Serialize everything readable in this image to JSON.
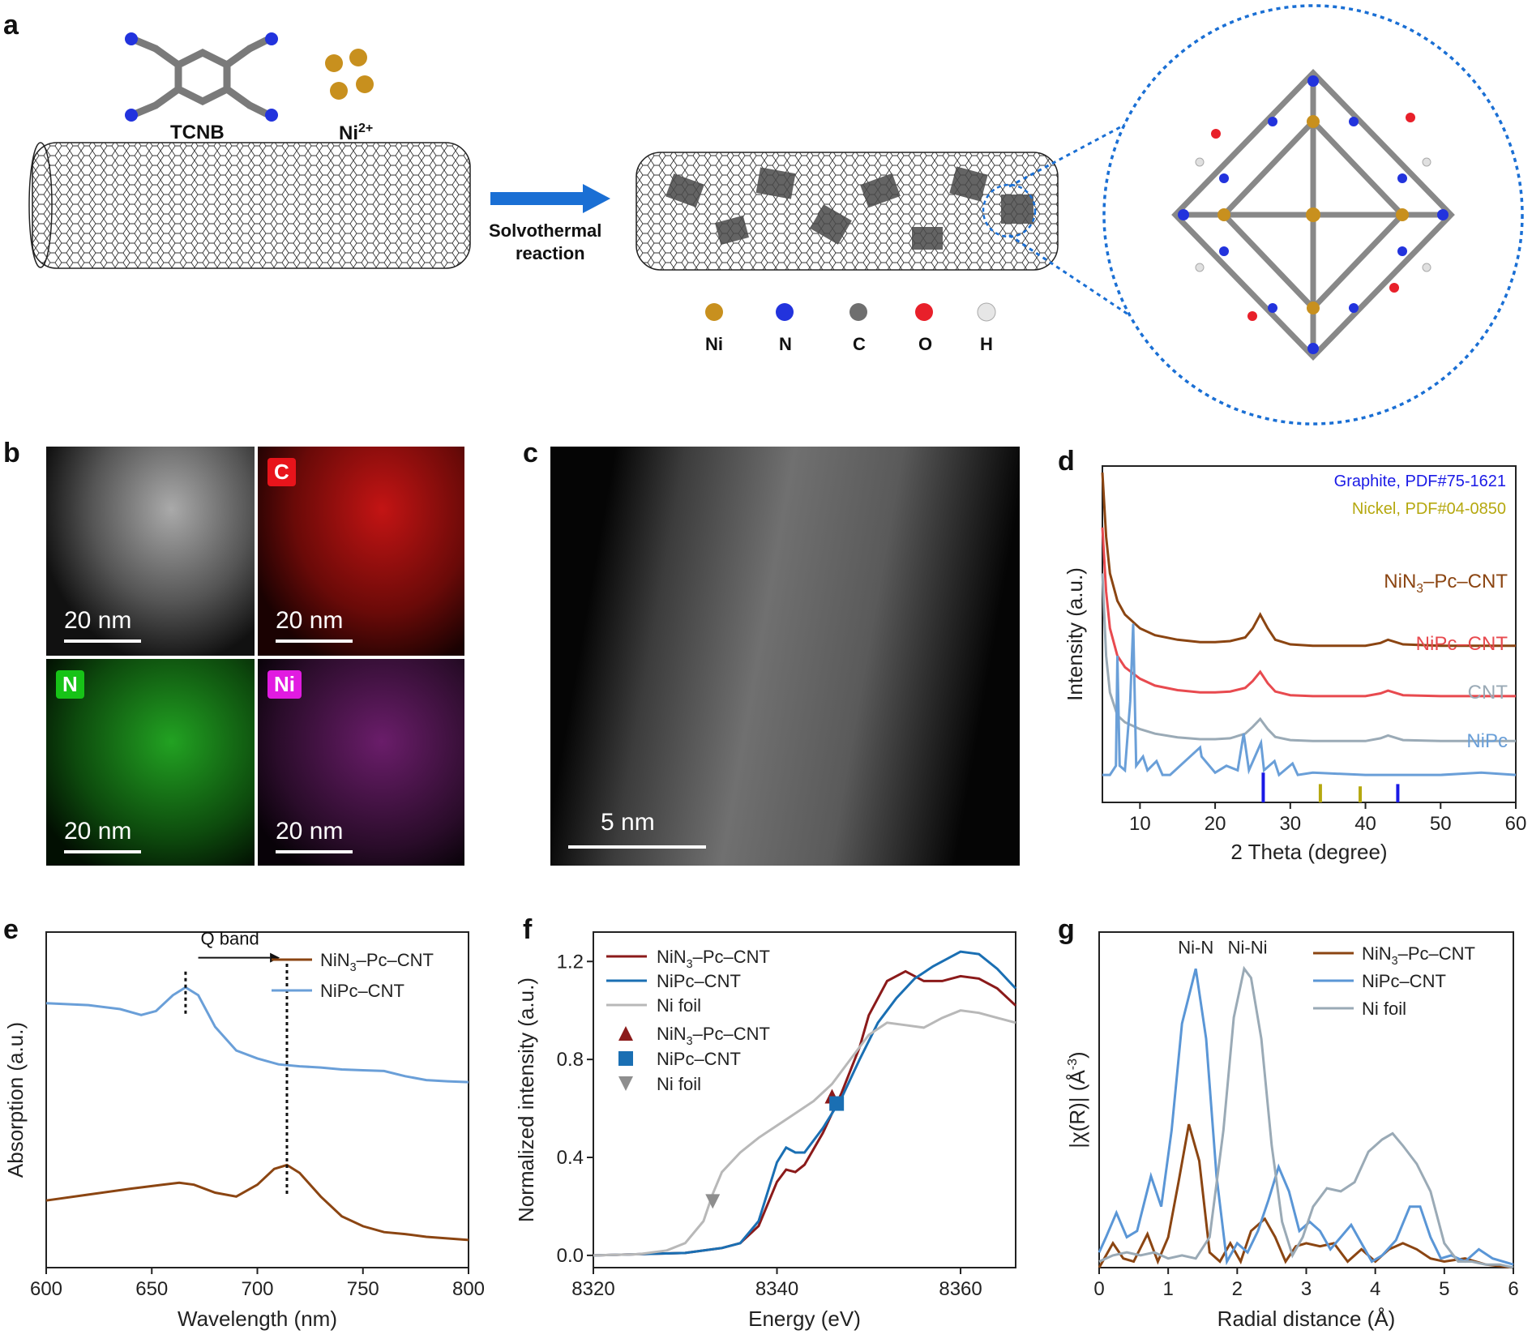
{
  "figure": {
    "panel_labels": [
      "a",
      "b",
      "c",
      "d",
      "e",
      "f",
      "g"
    ],
    "a": {
      "precursor_label": "TCNB",
      "metal_label": "Ni",
      "metal_charge": "2+",
      "arrow_text_line1": "Solvothermal",
      "arrow_text_line2": "reaction",
      "atom_legend": [
        {
          "label": "Ni",
          "color": "#c8901e"
        },
        {
          "label": "N",
          "color": "#2233dd"
        },
        {
          "label": "C",
          "color": "#6f6f6f"
        },
        {
          "label": "O",
          "color": "#e8202a"
        },
        {
          "label": "H",
          "color": "#e6e6e6"
        }
      ]
    },
    "b": {
      "tiles": [
        {
          "tag": "",
          "scale": "20 nm",
          "bg": "#2a2a2a",
          "tag_color": ""
        },
        {
          "tag": "C",
          "scale": "20 nm",
          "bg": "#5a0a08",
          "tag_color": "#e8141b"
        },
        {
          "tag": "N",
          "scale": "20 nm",
          "bg": "#0d3a0d",
          "tag_color": "#17c317"
        },
        {
          "tag": "Ni",
          "scale": "20 nm",
          "bg": "#160c16",
          "tag_color": "#e11be1"
        }
      ]
    },
    "c": {
      "scale": "5 nm"
    }
  },
  "chart_data": [
    {
      "id": "d",
      "type": "line",
      "xlabel": "2 Theta (degree)",
      "ylabel": "Intensity (a.u.)",
      "xlim": [
        5,
        60
      ],
      "xticks": [
        10,
        20,
        30,
        40,
        50,
        60
      ],
      "legend_refs": [
        {
          "text": "Graphite, PDF#75-1621",
          "color": "#1a1ae6"
        },
        {
          "text": "Nickel, PDF#04-0850",
          "color": "#b5a80f"
        }
      ],
      "series": [
        {
          "name": "NiN3–Pc–CNT",
          "name_main": "NiN",
          "name_sub": "3",
          "name_rest": "–Pc–CNT",
          "color": "#8b4512",
          "x": [
            5,
            5.5,
            6,
            7,
            8,
            10,
            12,
            15,
            18,
            20,
            22,
            24,
            25,
            26,
            27,
            28,
            30,
            33,
            36,
            40,
            42,
            43,
            45,
            50,
            55,
            60
          ],
          "y": [
            1.0,
            0.86,
            0.78,
            0.72,
            0.69,
            0.66,
            0.645,
            0.635,
            0.63,
            0.63,
            0.632,
            0.64,
            0.66,
            0.69,
            0.66,
            0.635,
            0.625,
            0.622,
            0.622,
            0.622,
            0.628,
            0.635,
            0.625,
            0.622,
            0.622,
            0.622
          ]
        },
        {
          "name": "NiPc–CNT",
          "color": "#e84a4f",
          "x": [
            5,
            5.5,
            6,
            7,
            8,
            10,
            12,
            15,
            18,
            20,
            22,
            24,
            25,
            26,
            27,
            28,
            30,
            33,
            36,
            40,
            42,
            43,
            45,
            50,
            55,
            60
          ],
          "y": [
            0.88,
            0.74,
            0.66,
            0.6,
            0.575,
            0.55,
            0.535,
            0.525,
            0.52,
            0.52,
            0.522,
            0.53,
            0.545,
            0.565,
            0.54,
            0.522,
            0.514,
            0.512,
            0.512,
            0.512,
            0.518,
            0.524,
            0.514,
            0.512,
            0.512,
            0.512
          ]
        },
        {
          "name": "CNT",
          "color": "#9aaab6",
          "x": [
            5,
            5.5,
            6,
            7,
            8,
            10,
            12,
            15,
            18,
            20,
            22,
            24,
            25,
            26,
            27,
            28,
            30,
            33,
            36,
            40,
            42,
            43,
            45,
            50,
            55,
            60
          ],
          "y": [
            0.78,
            0.6,
            0.52,
            0.47,
            0.455,
            0.44,
            0.43,
            0.422,
            0.418,
            0.418,
            0.42,
            0.43,
            0.445,
            0.462,
            0.44,
            0.423,
            0.416,
            0.414,
            0.414,
            0.414,
            0.42,
            0.426,
            0.416,
            0.414,
            0.414,
            0.414
          ]
        },
        {
          "name": "NiPc",
          "color": "#6a9fd8",
          "x": [
            5,
            6,
            6.8,
            7.0,
            7.3,
            8,
            8.7,
            9.1,
            9.5,
            10.4,
            11,
            12.2,
            13,
            14,
            18,
            18.2,
            20,
            21.5,
            23,
            23.8,
            24.5,
            26.1,
            26.5,
            27.9,
            28.5,
            30.3,
            31,
            33,
            40,
            50,
            55.4,
            60
          ],
          "y": [
            0.34,
            0.34,
            0.36,
            0.6,
            0.36,
            0.35,
            0.5,
            0.67,
            0.36,
            0.38,
            0.35,
            0.37,
            0.34,
            0.34,
            0.4,
            0.38,
            0.345,
            0.36,
            0.35,
            0.43,
            0.35,
            0.41,
            0.35,
            0.37,
            0.34,
            0.365,
            0.34,
            0.345,
            0.34,
            0.34,
            0.345,
            0.34
          ]
        }
      ],
      "ref_lines": [
        {
          "x": 26.4,
          "height": 0.065,
          "color": "#1a1ae6"
        },
        {
          "x": 44.3,
          "height": 0.04,
          "color": "#1a1ae6"
        },
        {
          "x": 34.0,
          "height": 0.04,
          "color": "#b5a80f"
        },
        {
          "x": 39.3,
          "height": 0.035,
          "color": "#b5a80f"
        }
      ]
    },
    {
      "id": "e",
      "type": "line",
      "xlabel": "Wavelength (nm)",
      "ylabel": "Absorption (a.u.)",
      "xlim": [
        600,
        800
      ],
      "xticks": [
        600,
        650,
        700,
        750,
        800
      ],
      "annotation": "Q band",
      "series": [
        {
          "name": "NiN3–Pc–CNT",
          "name_main": "NiN",
          "name_sub": "3",
          "name_rest": "–Pc–CNT",
          "color": "#8b4512",
          "x": [
            600,
            620,
            640,
            655,
            663,
            670,
            680,
            690,
            700,
            708,
            714,
            720,
            730,
            740,
            750,
            760,
            770,
            780,
            800
          ],
          "y": [
            0.22,
            0.235,
            0.25,
            0.26,
            0.265,
            0.26,
            0.24,
            0.23,
            0.26,
            0.3,
            0.31,
            0.29,
            0.23,
            0.18,
            0.155,
            0.14,
            0.135,
            0.128,
            0.12
          ]
        },
        {
          "name": "NiPc–CNT",
          "color": "#6a9fd8",
          "x": [
            600,
            620,
            635,
            645,
            652,
            660,
            666,
            672,
            680,
            690,
            700,
            710,
            720,
            730,
            740,
            750,
            760,
            770,
            780,
            790,
            800
          ],
          "y": [
            0.72,
            0.715,
            0.705,
            0.69,
            0.7,
            0.74,
            0.76,
            0.74,
            0.66,
            0.6,
            0.58,
            0.565,
            0.56,
            0.557,
            0.552,
            0.55,
            0.548,
            0.535,
            0.525,
            0.522,
            0.52
          ]
        }
      ],
      "marker_lines": [
        666,
        714
      ]
    },
    {
      "id": "f",
      "type": "line",
      "xlabel": "Energy (eV)",
      "ylabel": "Normalized intensity  (a.u.)",
      "xlim": [
        8320,
        8366
      ],
      "ylim": [
        -0.05,
        1.32
      ],
      "xticks": [
        8320,
        8340,
        8360
      ],
      "yticks": [
        0.0,
        0.4,
        0.8,
        1.2
      ],
      "series": [
        {
          "name": "NiN3–Pc–CNT",
          "name_main": "NiN",
          "name_sub": "3",
          "name_rest": "–Pc–CNT",
          "color": "#8b1a1a",
          "x": [
            8320,
            8325,
            8330,
            8334,
            8336,
            8338,
            8340,
            8341,
            8342,
            8343,
            8345,
            8347,
            8349,
            8350,
            8352,
            8354,
            8356,
            8358,
            8360,
            8362,
            8364,
            8366
          ],
          "y": [
            0.0,
            0.005,
            0.01,
            0.03,
            0.05,
            0.12,
            0.3,
            0.35,
            0.34,
            0.37,
            0.5,
            0.66,
            0.85,
            0.98,
            1.12,
            1.16,
            1.12,
            1.12,
            1.14,
            1.13,
            1.09,
            1.02
          ]
        },
        {
          "name": "NiPc–CNT",
          "color": "#1a6fb3",
          "x": [
            8320,
            8325,
            8330,
            8334,
            8336,
            8338,
            8340,
            8341,
            8342,
            8343,
            8345,
            8347,
            8349,
            8351,
            8353,
            8355,
            8357,
            8359,
            8360,
            8362,
            8364,
            8366
          ],
          "y": [
            0.0,
            0.005,
            0.01,
            0.03,
            0.05,
            0.14,
            0.38,
            0.44,
            0.42,
            0.42,
            0.52,
            0.64,
            0.8,
            0.95,
            1.05,
            1.13,
            1.18,
            1.22,
            1.24,
            1.23,
            1.17,
            1.09
          ]
        },
        {
          "name": "Ni foil",
          "color": "#b8b8b8",
          "x": [
            8320,
            8325,
            8328,
            8330,
            8332,
            8333,
            8334,
            8336,
            8338,
            8340,
            8342,
            8344,
            8346,
            8348,
            8350,
            8352,
            8354,
            8356,
            8358,
            8360,
            8362,
            8364,
            8366
          ],
          "y": [
            0.0,
            0.005,
            0.02,
            0.05,
            0.14,
            0.25,
            0.34,
            0.42,
            0.48,
            0.53,
            0.58,
            0.63,
            0.7,
            0.8,
            0.9,
            0.95,
            0.94,
            0.93,
            0.97,
            1.0,
            0.99,
            0.97,
            0.95
          ]
        }
      ],
      "markers": [
        {
          "name": "NiN3–Pc–CNT",
          "name_main": "NiN",
          "name_sub": "3",
          "name_rest": "–Pc–CNT",
          "shape": "triangle-up",
          "color": "#8b1a1a",
          "x": 8346,
          "y": 0.65
        },
        {
          "name": "NiPc–CNT",
          "shape": "square",
          "color": "#1a6fb3",
          "x": 8346.5,
          "y": 0.62
        },
        {
          "name": "Ni foil",
          "shape": "triangle-down",
          "color": "#8e8e8e",
          "x": 8333,
          "y": 0.22
        }
      ]
    },
    {
      "id": "g",
      "type": "line",
      "xlabel": "Radial distance (Å)",
      "ylabel": "|χ(R)| (Å⁻³)",
      "ylabel_main": "|χ(R)| (Å",
      "ylabel_sup": "-3",
      "ylabel_end": ")",
      "xlim": [
        0,
        6
      ],
      "xticks": [
        0,
        1,
        2,
        3,
        4,
        5,
        6
      ],
      "peak_labels": [
        {
          "text": "Ni-N",
          "x": 1.4
        },
        {
          "text": "Ni-Ni",
          "x": 2.15
        }
      ],
      "series": [
        {
          "name": "NiN3–Pc–CNT",
          "name_main": "NiN",
          "name_sub": "3",
          "name_rest": "–Pc–CNT",
          "color": "#8b4512",
          "x": [
            0,
            0.2,
            0.35,
            0.5,
            0.7,
            0.85,
            1.0,
            1.15,
            1.3,
            1.45,
            1.6,
            1.75,
            1.9,
            2.05,
            2.2,
            2.4,
            2.55,
            2.7,
            2.85,
            3.0,
            3.2,
            3.4,
            3.6,
            3.8,
            4.0,
            4.2,
            4.4,
            4.6,
            4.8,
            5.0,
            5.3,
            5.6,
            6.0
          ],
          "y": [
            0.0,
            0.08,
            0.03,
            0.02,
            0.11,
            0.02,
            0.1,
            0.28,
            0.47,
            0.35,
            0.05,
            0.02,
            0.08,
            0.02,
            0.12,
            0.16,
            0.1,
            0.02,
            0.07,
            0.08,
            0.07,
            0.08,
            0.02,
            0.06,
            0.02,
            0.06,
            0.08,
            0.06,
            0.03,
            0.02,
            0.03,
            0.01,
            0.0
          ]
        },
        {
          "name": "NiPc–CNT",
          "color": "#5a96d6",
          "x": [
            0,
            0.1,
            0.25,
            0.4,
            0.55,
            0.75,
            0.9,
            1.05,
            1.2,
            1.4,
            1.55,
            1.7,
            1.85,
            2.0,
            2.15,
            2.3,
            2.45,
            2.6,
            2.75,
            2.9,
            3.05,
            3.2,
            3.35,
            3.5,
            3.65,
            3.8,
            3.95,
            4.1,
            4.3,
            4.5,
            4.65,
            4.8,
            4.95,
            5.1,
            5.3,
            5.5,
            5.7,
            6.0
          ],
          "y": [
            0.05,
            0.1,
            0.18,
            0.1,
            0.12,
            0.3,
            0.2,
            0.45,
            0.8,
            0.98,
            0.75,
            0.3,
            0.02,
            0.08,
            0.05,
            0.12,
            0.22,
            0.33,
            0.25,
            0.12,
            0.15,
            0.12,
            0.06,
            0.1,
            0.14,
            0.08,
            0.02,
            0.04,
            0.09,
            0.2,
            0.2,
            0.1,
            0.03,
            0.04,
            0.02,
            0.06,
            0.03,
            0.01
          ]
        },
        {
          "name": "Ni foil",
          "color": "#9aaab6",
          "x": [
            0,
            0.2,
            0.4,
            0.6,
            0.8,
            1.0,
            1.2,
            1.4,
            1.6,
            1.8,
            1.95,
            2.1,
            2.2,
            2.35,
            2.5,
            2.65,
            2.8,
            2.95,
            3.1,
            3.3,
            3.5,
            3.7,
            3.9,
            4.1,
            4.25,
            4.4,
            4.6,
            4.8,
            5.0,
            5.2,
            5.4,
            5.6,
            5.8,
            6.0
          ],
          "y": [
            0.02,
            0.04,
            0.05,
            0.04,
            0.05,
            0.03,
            0.04,
            0.03,
            0.1,
            0.45,
            0.82,
            0.98,
            0.95,
            0.75,
            0.4,
            0.15,
            0.04,
            0.1,
            0.2,
            0.26,
            0.25,
            0.28,
            0.38,
            0.42,
            0.44,
            0.4,
            0.34,
            0.25,
            0.08,
            0.02,
            0.02,
            0.01,
            0.01,
            0.0
          ]
        }
      ]
    }
  ]
}
